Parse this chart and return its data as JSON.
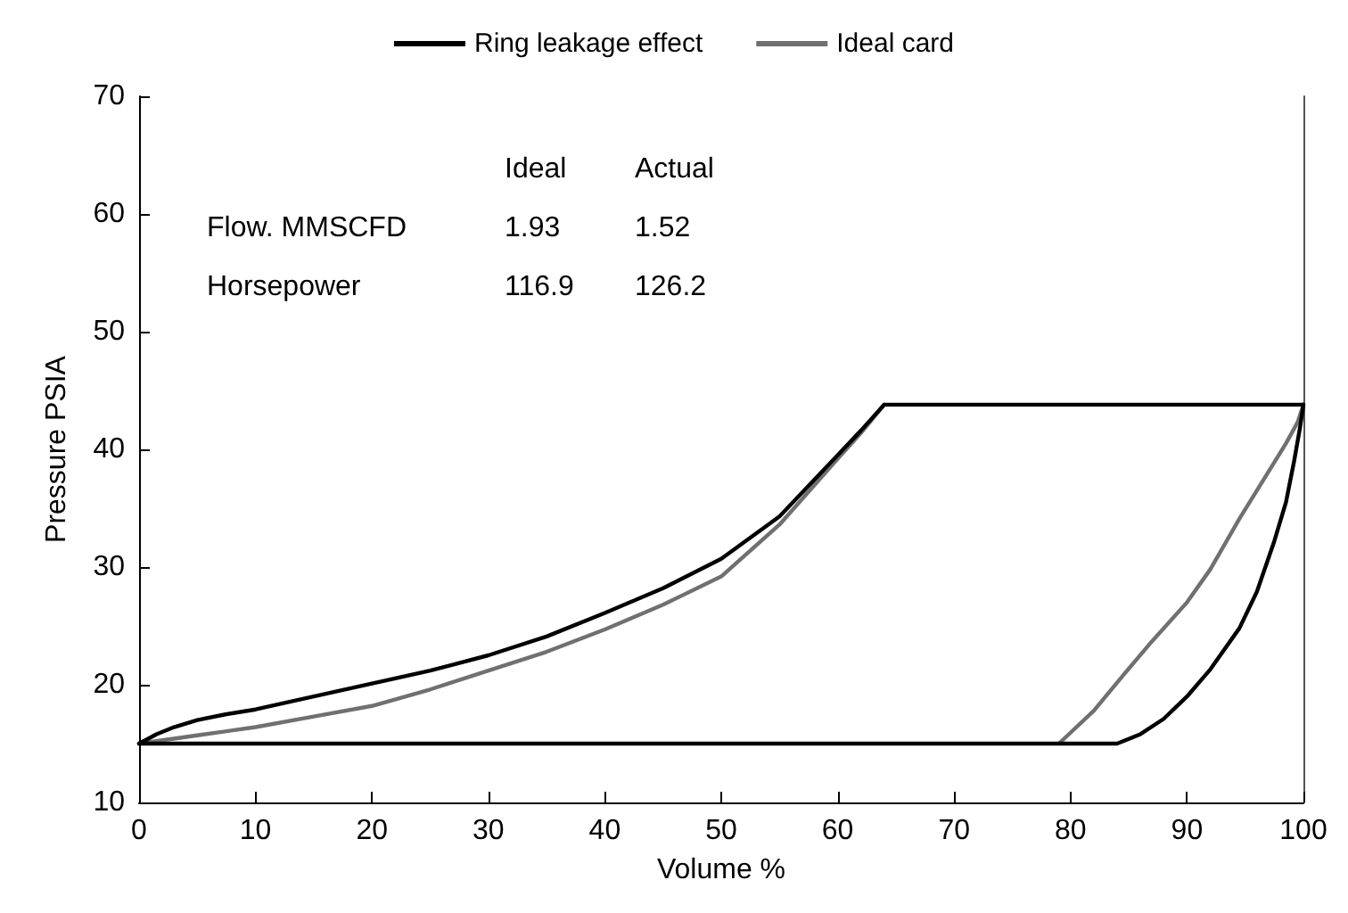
{
  "chart_data": {
    "type": "line",
    "xlabel": "Volume %",
    "ylabel": "Pressure PSIA",
    "xlim": [
      0,
      100
    ],
    "ylim": [
      10,
      70
    ],
    "xticks": [
      0,
      10,
      20,
      30,
      40,
      50,
      60,
      70,
      80,
      90,
      100
    ],
    "yticks": [
      10,
      20,
      30,
      40,
      50,
      60,
      70
    ],
    "grid": false,
    "legend": "top",
    "marker": "none",
    "line_style": "solid",
    "series": [
      {
        "name": "Ring leakage effect",
        "color": "#000000",
        "x": [
          0,
          1.5,
          3,
          5,
          7.5,
          10,
          15,
          20,
          25,
          30,
          35,
          40,
          45,
          50,
          55,
          60,
          62,
          64,
          100
        ],
        "values": [
          15,
          15.8,
          16.4,
          17,
          17.5,
          17.9,
          19,
          20.1,
          21.2,
          22.5,
          24.1,
          26.1,
          28.2,
          30.7,
          34.3,
          39.5,
          41.6,
          43.8,
          43.8
        ]
      },
      {
        "color": "#000000",
        "x": [
          0,
          84,
          86,
          88,
          90,
          92,
          94.5,
          96,
          97.5,
          98.5,
          99.2,
          99.7,
          100
        ],
        "values": [
          15,
          15,
          15.8,
          17.1,
          19,
          21.3,
          24.8,
          27.9,
          32.2,
          35.5,
          39,
          41.8,
          43.8
        ]
      },
      {
        "name": "Ideal card",
        "color": "#707070",
        "x": [
          0,
          5,
          10,
          15,
          20,
          25,
          30,
          35,
          40,
          45,
          50,
          55,
          60,
          62,
          64
        ],
        "values": [
          15,
          15.7,
          16.4,
          17.3,
          18.2,
          19.6,
          21.2,
          22.8,
          24.7,
          26.8,
          29.2,
          33.6,
          39.2,
          41.4,
          43.8
        ]
      },
      {
        "color": "#707070",
        "x": [
          79,
          82,
          84.6,
          87,
          90,
          92,
          94.5,
          96.5,
          98.5,
          99.5,
          100
        ],
        "values": [
          15,
          17.8,
          20.9,
          23.7,
          27,
          29.8,
          34.1,
          37.3,
          40.5,
          42.3,
          43.8
        ]
      }
    ],
    "annotations": [
      "Ideal",
      "Actual",
      "Flow. MMSCFD",
      "1.93",
      "1.52",
      "Horsepower",
      "116.9",
      "126.2"
    ]
  }
}
